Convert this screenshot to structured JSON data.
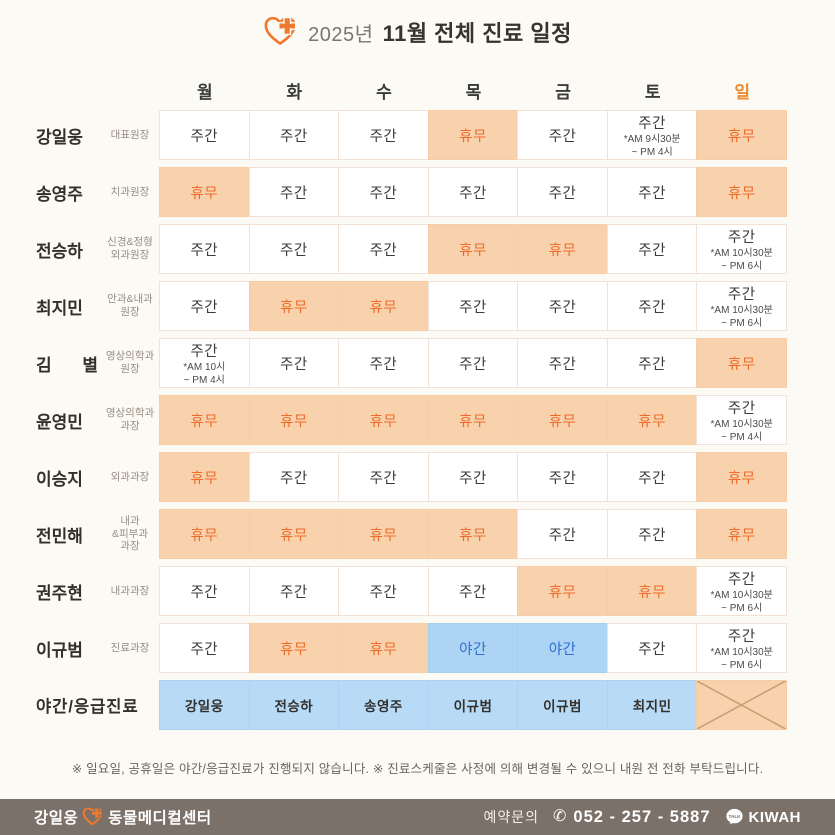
{
  "header": {
    "year": "2025년",
    "title": "11월 전체 진료 일정"
  },
  "days": [
    {
      "label": "월",
      "accent": false
    },
    {
      "label": "화",
      "accent": false
    },
    {
      "label": "수",
      "accent": false
    },
    {
      "label": "목",
      "accent": false
    },
    {
      "label": "금",
      "accent": false
    },
    {
      "label": "토",
      "accent": false
    },
    {
      "label": "일",
      "accent": true
    }
  ],
  "cell_labels": {
    "day": "주간",
    "off": "휴무",
    "night": "야간"
  },
  "schedule": {
    "rows": [
      {
        "name": "강일웅",
        "role": "대표원장",
        "cells": [
          {
            "t": "day"
          },
          {
            "t": "day"
          },
          {
            "t": "day"
          },
          {
            "t": "off"
          },
          {
            "t": "day"
          },
          {
            "t": "day",
            "time": [
              "*AM 9시30분",
              "~ PM 4시"
            ]
          },
          {
            "t": "off"
          }
        ]
      },
      {
        "name": "송영주",
        "role": "치과원장",
        "cells": [
          {
            "t": "off"
          },
          {
            "t": "day"
          },
          {
            "t": "day"
          },
          {
            "t": "day"
          },
          {
            "t": "day"
          },
          {
            "t": "day"
          },
          {
            "t": "off"
          }
        ]
      },
      {
        "name": "전승하",
        "role": "신경&정형\n외과원장",
        "cells": [
          {
            "t": "day"
          },
          {
            "t": "day"
          },
          {
            "t": "day"
          },
          {
            "t": "off"
          },
          {
            "t": "off"
          },
          {
            "t": "day"
          },
          {
            "t": "day",
            "time": [
              "*AM 10시30분",
              "~ PM 6시"
            ]
          }
        ]
      },
      {
        "name": "최지민",
        "role": "안과&내과\n원장",
        "cells": [
          {
            "t": "day"
          },
          {
            "t": "off"
          },
          {
            "t": "off"
          },
          {
            "t": "day"
          },
          {
            "t": "day"
          },
          {
            "t": "day"
          },
          {
            "t": "day",
            "time": [
              "*AM 10시30분",
              "~ PM 6시"
            ]
          }
        ]
      },
      {
        "name": "김 별",
        "role": "영상의학과\n원장",
        "cells": [
          {
            "t": "day",
            "time": [
              "*AM 10시",
              "~ PM 4시"
            ]
          },
          {
            "t": "day"
          },
          {
            "t": "day"
          },
          {
            "t": "day"
          },
          {
            "t": "day"
          },
          {
            "t": "day"
          },
          {
            "t": "off"
          }
        ]
      },
      {
        "name": "윤영민",
        "role": "영상의학과\n과장",
        "cells": [
          {
            "t": "off"
          },
          {
            "t": "off"
          },
          {
            "t": "off"
          },
          {
            "t": "off"
          },
          {
            "t": "off"
          },
          {
            "t": "off"
          },
          {
            "t": "day",
            "time": [
              "*AM 10시30분",
              "~ PM 4시"
            ]
          }
        ]
      },
      {
        "name": "이승지",
        "role": "외과과장",
        "cells": [
          {
            "t": "off"
          },
          {
            "t": "day"
          },
          {
            "t": "day"
          },
          {
            "t": "day"
          },
          {
            "t": "day"
          },
          {
            "t": "day"
          },
          {
            "t": "off"
          }
        ]
      },
      {
        "name": "전민해",
        "role": "내과\n&피부과\n과장",
        "cells": [
          {
            "t": "off"
          },
          {
            "t": "off"
          },
          {
            "t": "off"
          },
          {
            "t": "off"
          },
          {
            "t": "day"
          },
          {
            "t": "day"
          },
          {
            "t": "off"
          }
        ]
      },
      {
        "name": "권주현",
        "role": "내과과장",
        "cells": [
          {
            "t": "day"
          },
          {
            "t": "day"
          },
          {
            "t": "day"
          },
          {
            "t": "day"
          },
          {
            "t": "off"
          },
          {
            "t": "off"
          },
          {
            "t": "day",
            "time": [
              "*AM 10시30분",
              "~ PM 6시"
            ]
          }
        ]
      },
      {
        "name": "이규범",
        "role": "진료과장",
        "cells": [
          {
            "t": "day"
          },
          {
            "t": "off"
          },
          {
            "t": "off"
          },
          {
            "t": "night"
          },
          {
            "t": "night"
          },
          {
            "t": "day"
          },
          {
            "t": "day",
            "time": [
              "*AM 10시30분",
              "~ PM 6시"
            ]
          }
        ]
      }
    ],
    "emergency": {
      "label": "야간/응급진료",
      "cells": [
        {
          "t": "person",
          "label": "강일웅"
        },
        {
          "t": "person",
          "label": "전승하"
        },
        {
          "t": "person",
          "label": "송영주"
        },
        {
          "t": "person",
          "label": "이규범"
        },
        {
          "t": "person",
          "label": "이규범"
        },
        {
          "t": "person",
          "label": "최지민"
        },
        {
          "t": "closed"
        }
      ]
    }
  },
  "notes": {
    "text": "※ 일요일, 공휴일은 야간/응급진료가 진행되지 않습니다.  ※ 진료스케줄은 사정에 의해 변경될 수 있으니 내원 전 전화 부탁드립니다."
  },
  "footer": {
    "clinic_left": "강일웅",
    "clinic_right": "동물메디컬센터",
    "reservation": "예약문의",
    "phone": "052 - 257 - 5887",
    "messenger": "KIWAH",
    "talk_icon_text": "TALK"
  },
  "colors": {
    "accent_orange": "#ef6b2b",
    "off_bg": "#f8d2ac",
    "night_bg": "#aed4f3",
    "night_text": "#2d6fd6",
    "emergency_bg": "#b7daf6",
    "footer_bg": "#7b7168",
    "sunday_header": "#ef8a2e"
  }
}
